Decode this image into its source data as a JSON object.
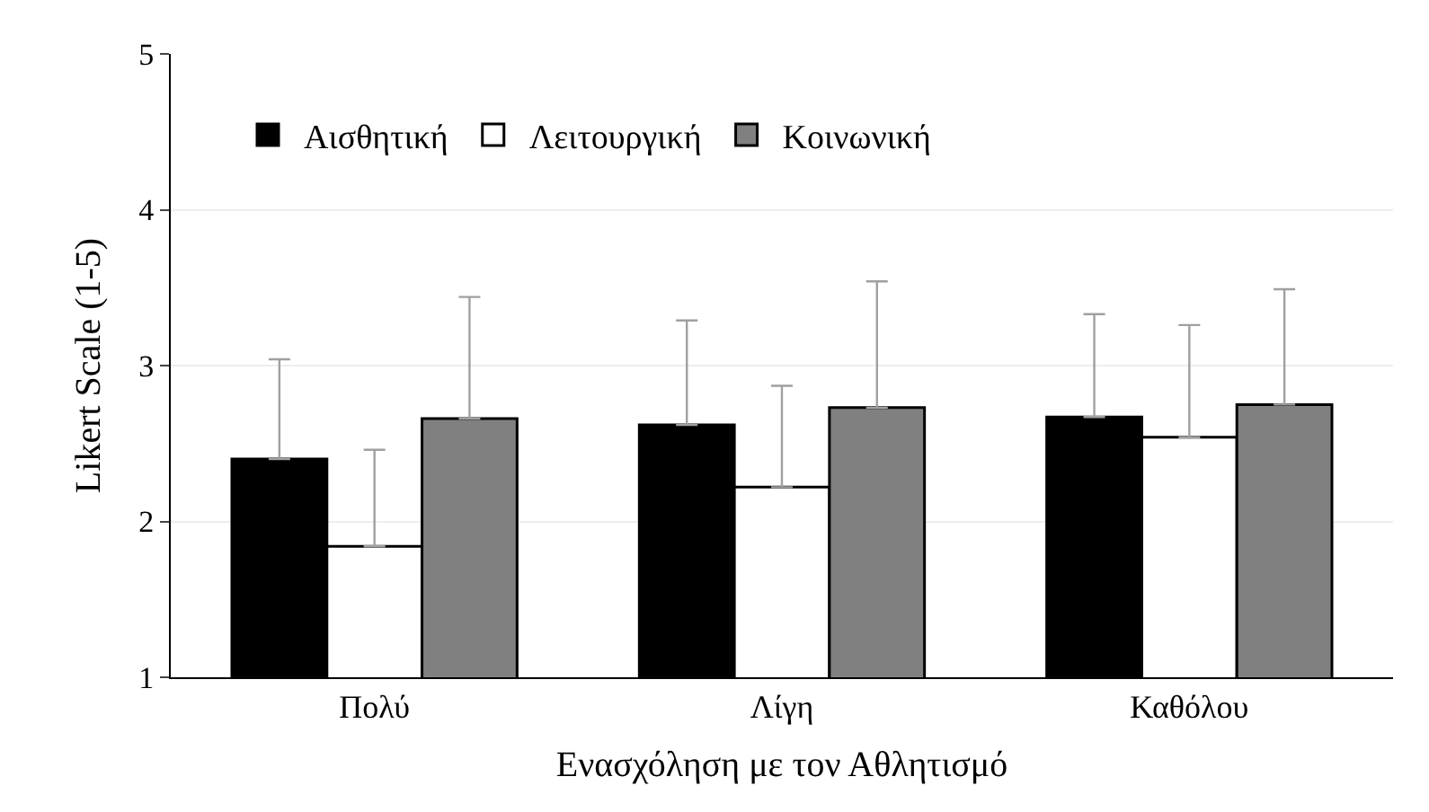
{
  "chart_data": {
    "type": "bar",
    "xlabel": "Ενασχόληση με τον Αθλητισμό",
    "ylabel": "Likert Scale (1-5)",
    "categories": [
      "Πολύ",
      "Λίγη",
      "Καθόλου"
    ],
    "series": [
      {
        "name": "Αισθητική",
        "color": "#000000",
        "values": [
          2.4,
          2.62,
          2.67
        ],
        "errors": [
          [
            2.4,
            3.04
          ],
          [
            2.62,
            3.29
          ],
          [
            2.67,
            3.33
          ]
        ]
      },
      {
        "name": "Λειτουργική",
        "color": "#ffffff",
        "values": [
          1.84,
          2.22,
          2.54
        ],
        "errors": [
          [
            1.84,
            2.46
          ],
          [
            2.22,
            2.87
          ],
          [
            2.54,
            3.26
          ]
        ]
      },
      {
        "name": "Κοινωνική",
        "color": "#808080",
        "values": [
          2.66,
          2.73,
          2.75
        ],
        "errors": [
          [
            2.66,
            3.44
          ],
          [
            2.73,
            3.54
          ],
          [
            2.75,
            3.49
          ]
        ]
      }
    ],
    "ylim": [
      1,
      5
    ],
    "yticks": [
      1,
      2,
      3,
      4,
      5
    ],
    "grid": "y",
    "legend": "top left"
  }
}
